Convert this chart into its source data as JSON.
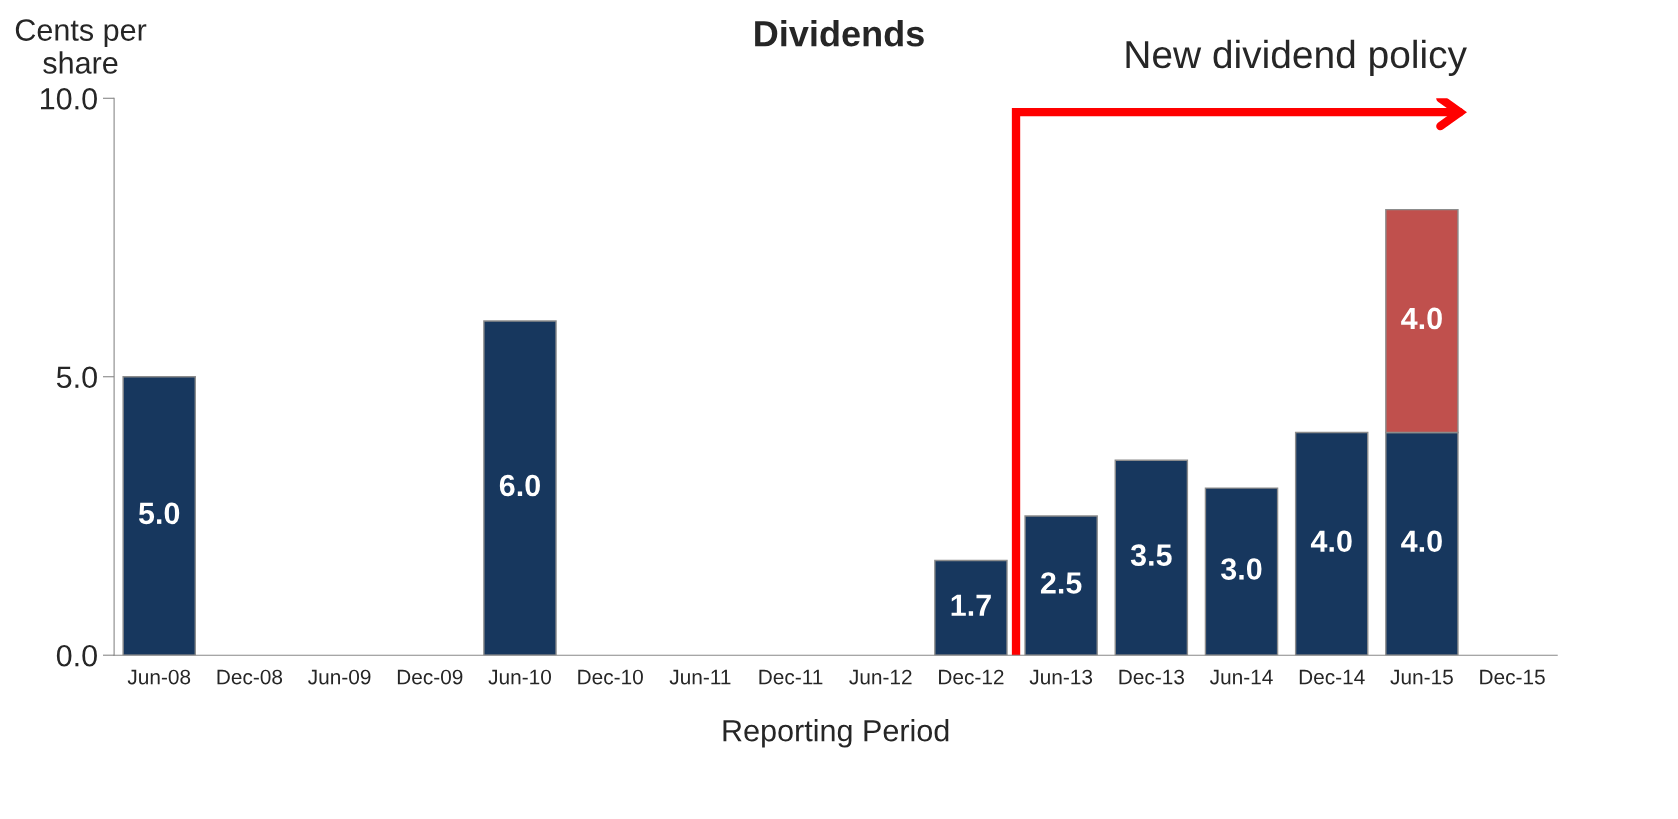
{
  "chart_data": {
    "type": "bar",
    "title": "Dividends",
    "ylabel": "Cents per share",
    "xlabel": "Reporting Period",
    "categories": [
      "Jun-08",
      "Dec-08",
      "Jun-09",
      "Dec-09",
      "Jun-10",
      "Dec-10",
      "Jun-11",
      "Dec-11",
      "Jun-12",
      "Dec-12",
      "Jun-13",
      "Dec-13",
      "Jun-14",
      "Dec-14",
      "Jun-15",
      "Dec-15"
    ],
    "series": [
      {
        "color": "#17375e",
        "values": [
          5.0,
          null,
          null,
          null,
          6.0,
          null,
          null,
          null,
          null,
          1.7,
          2.5,
          3.5,
          3.0,
          4.0,
          4.0,
          null
        ],
        "value_labels": [
          "5.0",
          null,
          null,
          null,
          "6.0",
          null,
          null,
          null,
          null,
          "1.7",
          "2.5",
          "3.5",
          "3.0",
          "4.0",
          "4.0",
          null
        ]
      },
      {
        "color": "#c0504d",
        "values": [
          null,
          null,
          null,
          null,
          null,
          null,
          null,
          null,
          null,
          null,
          null,
          null,
          null,
          null,
          4.0,
          null
        ],
        "value_labels": [
          null,
          null,
          null,
          null,
          null,
          null,
          null,
          null,
          null,
          null,
          null,
          null,
          null,
          null,
          "4.0",
          null
        ]
      }
    ],
    "stacked": true,
    "ylim": [
      0,
      10
    ],
    "yticks": [
      {
        "value": 0,
        "label": "0.0"
      },
      {
        "value": 5,
        "label": "5.0"
      },
      {
        "value": 10,
        "label": "10.0"
      }
    ],
    "grid": false,
    "legend": false,
    "annotations": [
      "New dividend policy"
    ]
  }
}
